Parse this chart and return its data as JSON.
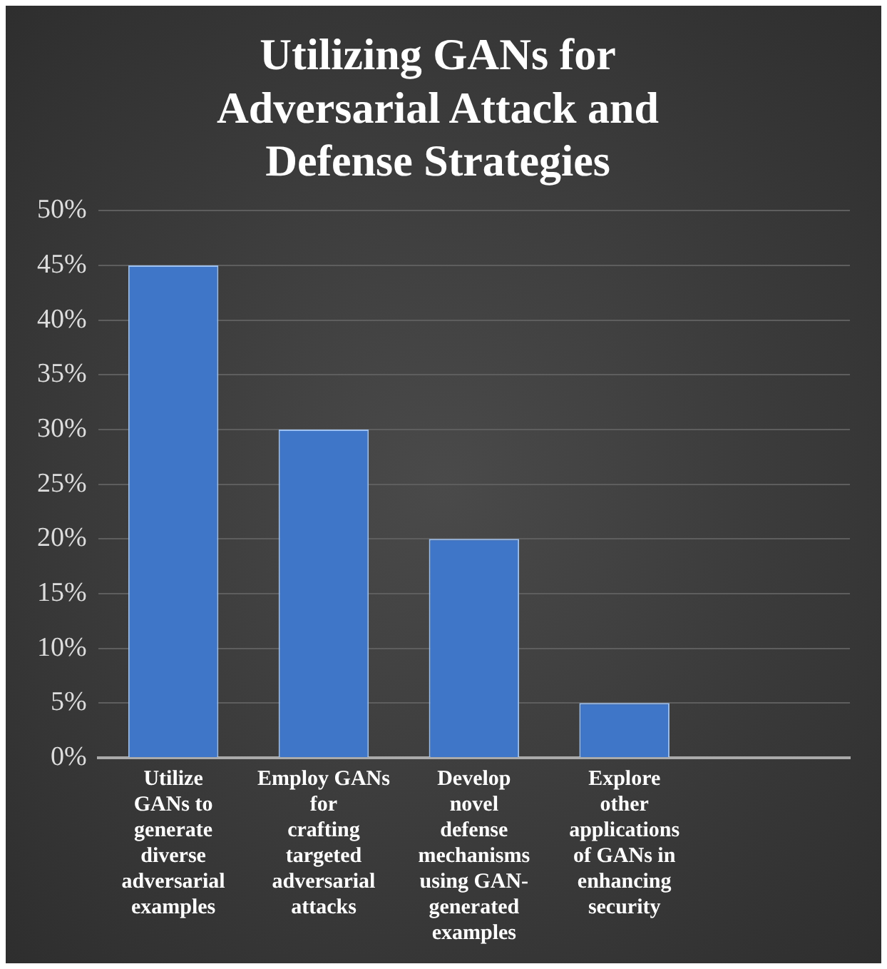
{
  "chart_data": {
    "type": "bar",
    "title": "Utilizing GANs for Adversarial Attack and Defense Strategies",
    "categories": [
      "Utilize GANs to generate diverse adversarial examples",
      "Employ GANs for crafting targeted adversarial attacks",
      "Develop novel defense mechanisms using GAN-generated examples",
      "Explore other applications of GANs in enhancing security",
      null
    ],
    "values": [
      45,
      30,
      20,
      5,
      null
    ],
    "color": "#3f76c8",
    "ylim": [
      0,
      50
    ],
    "yticks": [
      {
        "value": 0,
        "label": "0%"
      },
      {
        "value": 5,
        "label": "5%"
      },
      {
        "value": 10,
        "label": "10%"
      },
      {
        "value": 15,
        "label": "15%"
      },
      {
        "value": 20,
        "label": "20%"
      },
      {
        "value": 25,
        "label": "25%"
      },
      {
        "value": 30,
        "label": "30%"
      },
      {
        "value": 35,
        "label": "35%"
      },
      {
        "value": 40,
        "label": "40%"
      },
      {
        "value": 45,
        "label": "45%"
      },
      {
        "value": 50,
        "label": "50%"
      }
    ],
    "grid": "y"
  }
}
